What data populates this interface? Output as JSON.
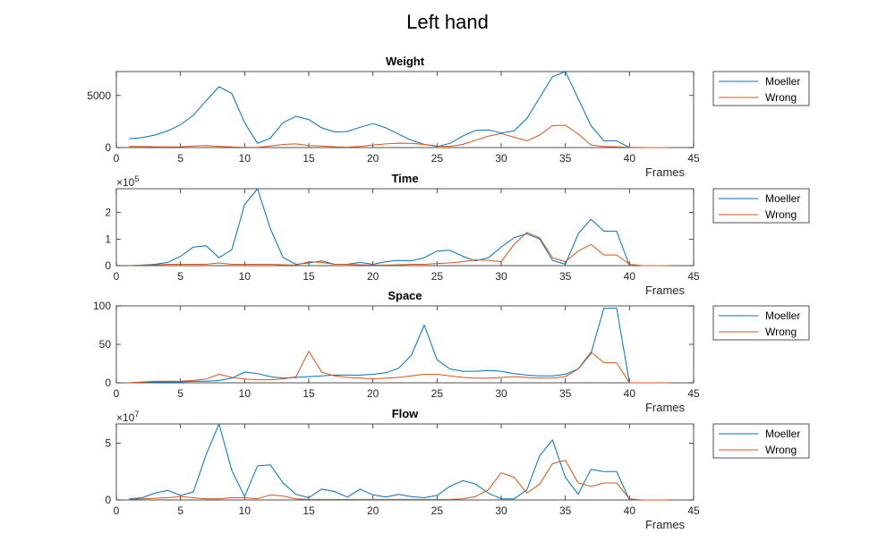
{
  "figure": {
    "title": "Left hand"
  },
  "colors": {
    "moeller": "#0072BD",
    "wrong": "#D95319",
    "axis": "#262626"
  },
  "chart_data": [
    {
      "type": "line",
      "title": "Weight",
      "xlabel": "Frames",
      "ylabel": "",
      "xlim": [
        0,
        45
      ],
      "ylim": [
        0,
        7300
      ],
      "xticks": [
        "0",
        "5",
        "10",
        "15",
        "20",
        "25",
        "30",
        "35",
        "40",
        "45"
      ],
      "yticks": [
        {
          "value": 0,
          "label": "0"
        },
        {
          "value": 5000,
          "label": "5000"
        }
      ],
      "exponent": null,
      "grid": false,
      "legend": "outside-right-top",
      "series": [
        {
          "name": "Moeller",
          "color": "#0072BD",
          "x": [
            1,
            2,
            3,
            4,
            5,
            6,
            7,
            8,
            9,
            10,
            11,
            12,
            13,
            14,
            15,
            16,
            17,
            18,
            19,
            20,
            21,
            22,
            23,
            24,
            25,
            26,
            27,
            28,
            29,
            30,
            31,
            32,
            33,
            34,
            35,
            36,
            37,
            38,
            39,
            40
          ],
          "y": [
            850,
            950,
            1200,
            1600,
            2200,
            3100,
            4500,
            5850,
            5200,
            2400,
            400,
            900,
            2400,
            3000,
            2700,
            1900,
            1500,
            1550,
            1950,
            2300,
            1900,
            1300,
            700,
            300,
            100,
            400,
            1100,
            1650,
            1700,
            1400,
            1600,
            2800,
            4800,
            6800,
            7300,
            4700,
            2100,
            650,
            650,
            0
          ]
        },
        {
          "name": "Wrong",
          "color": "#D95319",
          "x": [
            1,
            2,
            3,
            4,
            5,
            6,
            7,
            8,
            9,
            10,
            11,
            12,
            13,
            14,
            15,
            16,
            17,
            18,
            19,
            20,
            21,
            22,
            23,
            24,
            25,
            26,
            27,
            28,
            29,
            30,
            31,
            32,
            33,
            34,
            35,
            36,
            37,
            38,
            39,
            40,
            41,
            42,
            43
          ],
          "y": [
            100,
            100,
            80,
            60,
            80,
            150,
            200,
            120,
            60,
            30,
            20,
            150,
            300,
            350,
            200,
            150,
            80,
            40,
            100,
            250,
            350,
            420,
            400,
            300,
            150,
            100,
            300,
            700,
            1100,
            1350,
            1000,
            650,
            1200,
            2100,
            2150,
            1300,
            250,
            100,
            80,
            30,
            0,
            0,
            0
          ]
        }
      ]
    },
    {
      "type": "line",
      "title": "Time",
      "xlabel": "Frames",
      "ylabel": "",
      "xlim": [
        0,
        45
      ],
      "ylim": [
        0,
        2.9
      ],
      "xticks": [
        "0",
        "5",
        "10",
        "15",
        "20",
        "25",
        "30",
        "35",
        "40",
        "45"
      ],
      "yticks": [
        {
          "value": 0,
          "label": "0"
        },
        {
          "value": 1,
          "label": "1"
        },
        {
          "value": 2,
          "label": "2"
        }
      ],
      "exponent": "5",
      "grid": false,
      "legend": "outside-right-top",
      "series": [
        {
          "name": "Moeller",
          "color": "#0072BD",
          "x": [
            1,
            2,
            3,
            4,
            5,
            6,
            7,
            8,
            9,
            10,
            11,
            12,
            13,
            14,
            15,
            16,
            17,
            18,
            19,
            20,
            21,
            22,
            23,
            24,
            25,
            26,
            27,
            28,
            29,
            30,
            31,
            32,
            33,
            34,
            35,
            36,
            37,
            38,
            39,
            40
          ],
          "y": [
            0,
            0.02,
            0.05,
            0.12,
            0.35,
            0.7,
            0.75,
            0.3,
            0.6,
            2.3,
            2.9,
            1.4,
            0.3,
            0.05,
            0.1,
            0.18,
            0.05,
            0.05,
            0.12,
            0.05,
            0.15,
            0.2,
            0.18,
            0.3,
            0.55,
            0.58,
            0.35,
            0.18,
            0.3,
            0.7,
            1.05,
            1.2,
            1.0,
            0.2,
            0.05,
            1.2,
            1.75,
            1.3,
            1.3,
            0
          ]
        },
        {
          "name": "Wrong",
          "color": "#D95319",
          "x": [
            1,
            2,
            3,
            4,
            5,
            6,
            7,
            8,
            9,
            10,
            11,
            12,
            13,
            14,
            15,
            16,
            17,
            18,
            19,
            20,
            21,
            22,
            23,
            24,
            25,
            26,
            27,
            28,
            29,
            30,
            31,
            32,
            33,
            34,
            35,
            36,
            37,
            38,
            39,
            40,
            41,
            42,
            43
          ],
          "y": [
            0,
            0.02,
            0.03,
            0.05,
            0.05,
            0.05,
            0.05,
            0.1,
            0.05,
            0.05,
            0.05,
            0.05,
            0.03,
            0.02,
            0.15,
            0.12,
            0.05,
            0.05,
            0.03,
            0.02,
            0.02,
            0.03,
            0.05,
            0.05,
            0.08,
            0.1,
            0.15,
            0.22,
            0.2,
            0.15,
            0.8,
            1.25,
            1.05,
            0.3,
            0.15,
            0.55,
            0.8,
            0.4,
            0.4,
            0.05,
            0,
            0,
            0
          ]
        }
      ]
    },
    {
      "type": "line",
      "title": "Space",
      "xlabel": "Frames",
      "ylabel": "",
      "xlim": [
        0,
        45
      ],
      "ylim": [
        0,
        100
      ],
      "xticks": [
        "0",
        "5",
        "10",
        "15",
        "20",
        "25",
        "30",
        "35",
        "40",
        "45"
      ],
      "yticks": [
        {
          "value": 0,
          "label": "0"
        },
        {
          "value": 50,
          "label": "50"
        },
        {
          "value": 100,
          "label": "100"
        }
      ],
      "exponent": null,
      "grid": false,
      "legend": "outside-right-top",
      "series": [
        {
          "name": "Moeller",
          "color": "#0072BD",
          "x": [
            1,
            2,
            3,
            4,
            5,
            6,
            7,
            8,
            9,
            10,
            11,
            12,
            13,
            14,
            15,
            16,
            17,
            18,
            19,
            20,
            21,
            22,
            23,
            24,
            25,
            26,
            27,
            28,
            29,
            30,
            31,
            32,
            33,
            34,
            35,
            36,
            37,
            38,
            39,
            40
          ],
          "y": [
            0,
            1,
            1,
            1,
            1,
            2,
            2,
            3,
            6,
            14,
            12,
            8,
            6,
            7,
            8,
            9,
            10,
            10,
            10,
            11,
            13,
            19,
            36,
            75,
            30,
            18,
            15,
            15,
            16,
            15,
            12,
            10,
            9,
            9,
            11,
            18,
            38,
            97,
            97,
            0
          ]
        },
        {
          "name": "Wrong",
          "color": "#D95319",
          "x": [
            1,
            2,
            3,
            4,
            5,
            6,
            7,
            8,
            9,
            10,
            11,
            12,
            13,
            14,
            15,
            16,
            17,
            18,
            19,
            20,
            21,
            22,
            23,
            24,
            25,
            26,
            27,
            28,
            29,
            30,
            31,
            32,
            33,
            34,
            35,
            36,
            37,
            38,
            39,
            40,
            41,
            42,
            43
          ],
          "y": [
            0,
            1,
            2,
            2,
            2,
            3,
            5,
            11,
            7,
            5,
            4,
            4,
            5,
            8,
            41,
            14,
            9,
            7,
            6,
            5,
            6,
            7,
            9,
            11,
            11,
            9,
            7,
            6,
            6,
            7,
            8,
            7,
            6,
            6,
            8,
            18,
            40,
            26,
            26,
            0,
            0,
            0,
            0
          ]
        }
      ]
    },
    {
      "type": "line",
      "title": "Flow",
      "xlabel": "Frames",
      "ylabel": "",
      "xlim": [
        0,
        45
      ],
      "ylim": [
        0,
        6.7
      ],
      "xticks": [
        "0",
        "5",
        "10",
        "15",
        "20",
        "25",
        "30",
        "35",
        "40",
        "45"
      ],
      "yticks": [
        {
          "value": 0,
          "label": "0"
        },
        {
          "value": 5,
          "label": "5"
        }
      ],
      "exponent": "7",
      "grid": false,
      "legend": "outside-right-top",
      "series": [
        {
          "name": "Moeller",
          "color": "#0072BD",
          "x": [
            1,
            2,
            3,
            4,
            5,
            6,
            7,
            8,
            9,
            10,
            11,
            12,
            13,
            14,
            15,
            16,
            17,
            18,
            19,
            20,
            21,
            22,
            23,
            24,
            25,
            26,
            27,
            28,
            29,
            30,
            31,
            32,
            33,
            34,
            35,
            36,
            37,
            38,
            39,
            40
          ],
          "y": [
            0.1,
            0.2,
            0.6,
            0.85,
            0.4,
            0.7,
            4.0,
            6.7,
            2.6,
            0.3,
            3.0,
            3.1,
            1.5,
            0.5,
            0.2,
            0.95,
            0.75,
            0.25,
            0.95,
            0.45,
            0.25,
            0.5,
            0.3,
            0.2,
            0.4,
            1.2,
            1.7,
            1.4,
            0.6,
            0.1,
            0.1,
            0.9,
            3.9,
            5.3,
            2.0,
            0.5,
            2.7,
            2.5,
            2.5,
            0
          ]
        },
        {
          "name": "Wrong",
          "color": "#D95319",
          "x": [
            1,
            2,
            3,
            4,
            5,
            6,
            7,
            8,
            9,
            10,
            11,
            12,
            13,
            14,
            15,
            16,
            17,
            18,
            19,
            20,
            21,
            22,
            23,
            24,
            25,
            26,
            27,
            28,
            29,
            30,
            31,
            32,
            33,
            34,
            35,
            36,
            37,
            38,
            39,
            40,
            41,
            42,
            43
          ],
          "y": [
            0.05,
            0.1,
            0.15,
            0.2,
            0.3,
            0.2,
            0.1,
            0.1,
            0.2,
            0.2,
            0.1,
            0.45,
            0.35,
            0.1,
            0.05,
            0.05,
            0.05,
            0.05,
            0.05,
            0.05,
            0.05,
            0.05,
            0.05,
            0.05,
            0.05,
            0.05,
            0.1,
            0.3,
            0.9,
            2.4,
            2.0,
            0.6,
            1.4,
            3.2,
            3.5,
            1.5,
            1.2,
            1.5,
            1.5,
            0.1,
            0,
            0,
            0
          ]
        }
      ]
    }
  ]
}
